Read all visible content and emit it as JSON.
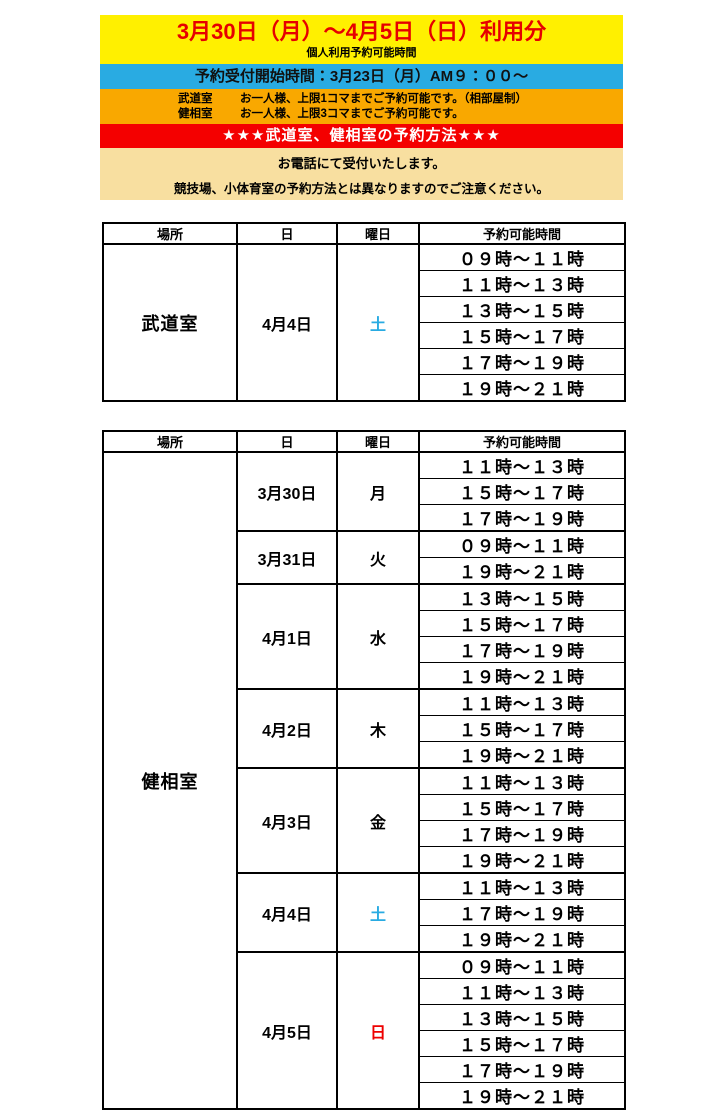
{
  "colors": {
    "yellow": "#FFF000",
    "title_red": "#E60000",
    "blue": "#29ABE2",
    "orange": "#F9A800",
    "band_red": "#F40000",
    "cream": "#F8DFA0",
    "saturday_blue": "#29ABE2",
    "sunday_red": "#EE0000"
  },
  "header": {
    "title": "3月30日（月）～4月5日（日）利用分",
    "subtitle": "個人利用予約可能時間",
    "reception_line": "予約受付開始時間：3月23日（月）AM９：００～",
    "rules": [
      {
        "room": "武道室",
        "text": "お一人様、上限1コマまでご予約可能です。（相部屋制）"
      },
      {
        "room": "健相室",
        "text": "お一人様、上限3コマまでご予約可能です。"
      }
    ],
    "method_title": "★★★武道室、健相室の予約方法★★★",
    "note1": "お電話にて受付いたします。",
    "note2": "競技場、小体育室の予約方法とは異なりますのでご注意ください。"
  },
  "tables": {
    "headers": [
      "場所",
      "日",
      "曜日",
      "予約可能時間"
    ],
    "budo": {
      "place": "武道室",
      "groups": [
        {
          "date": "4月4日",
          "day": "土",
          "day_color": "#29ABE2",
          "times": [
            "０９時～１１時",
            "１１時～１３時",
            "１３時～１５時",
            "１５時～１７時",
            "１７時～１９時",
            "１９時～２１時"
          ]
        }
      ]
    },
    "kenso": {
      "place": "健相室",
      "groups": [
        {
          "date": "3月30日",
          "day": "月",
          "day_color": "#000000",
          "times": [
            "１１時～１３時",
            "１５時～１７時",
            "１７時～１９時"
          ]
        },
        {
          "date": "3月31日",
          "day": "火",
          "day_color": "#000000",
          "times": [
            "０９時～１１時",
            "１９時～２１時"
          ]
        },
        {
          "date": "4月1日",
          "day": "水",
          "day_color": "#000000",
          "times": [
            "１３時～１５時",
            "１５時～１７時",
            "１７時～１９時",
            "１９時～２１時"
          ]
        },
        {
          "date": "4月2日",
          "day": "木",
          "day_color": "#000000",
          "times": [
            "１１時～１３時",
            "１５時～１７時",
            "１９時～２１時"
          ]
        },
        {
          "date": "4月3日",
          "day": "金",
          "day_color": "#000000",
          "times": [
            "１１時～１３時",
            "１５時～１７時",
            "１７時～１９時",
            "１９時～２１時"
          ]
        },
        {
          "date": "4月4日",
          "day": "土",
          "day_color": "#29ABE2",
          "times": [
            "１１時～１３時",
            "１７時～１９時",
            "１９時～２１時"
          ]
        },
        {
          "date": "4月5日",
          "day": "日",
          "day_color": "#EE0000",
          "times": [
            "０９時～１１時",
            "１１時～１３時",
            "１３時～１５時",
            "１５時～１７時",
            "１７時～１９時",
            "１９時～２１時"
          ]
        }
      ]
    }
  }
}
